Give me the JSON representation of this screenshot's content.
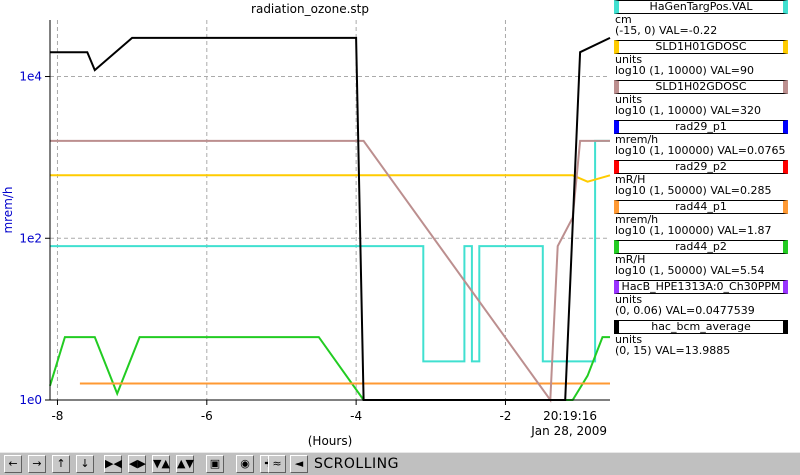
{
  "window": {
    "title": "radiation_ozone.stp"
  },
  "chart_data": {
    "type": "line",
    "title": "radiation_ozone.stp",
    "xlabel": "(Hours)",
    "ylabel": "mrem/h",
    "ylabel_color": "#0000cc",
    "yscale": "log10",
    "xlim": [
      -8.1,
      -0.6
    ],
    "ylim": [
      1,
      50000
    ],
    "x_ticks": [
      {
        "value": -8,
        "label": "-8"
      },
      {
        "value": -6,
        "label": "-6"
      },
      {
        "value": -4,
        "label": "-4"
      },
      {
        "value": -2,
        "label": "-2"
      }
    ],
    "y_ticks": [
      {
        "value": 1,
        "label": "1e0"
      },
      {
        "value": 100,
        "label": "1e2"
      },
      {
        "value": 10000,
        "label": "1e4"
      }
    ],
    "end_time": "20:19:16",
    "end_date": "Jan 28, 2009",
    "grid": true,
    "series": [
      {
        "name": "HaGenTargPos.VAL",
        "color": "#40e0d0",
        "points": [
          [
            -8.1,
            80
          ],
          [
            -4.3,
            80
          ],
          [
            -3.9,
            80
          ],
          [
            -3.1,
            80
          ],
          [
            -3.1,
            3
          ],
          [
            -2.55,
            3
          ],
          [
            -2.55,
            80
          ],
          [
            -2.45,
            80
          ],
          [
            -2.45,
            3
          ],
          [
            -2.35,
            3
          ],
          [
            -2.35,
            80
          ],
          [
            -1.5,
            80
          ],
          [
            -1.5,
            3
          ],
          [
            -0.8,
            3
          ],
          [
            -0.8,
            1600
          ],
          [
            -0.6,
            1600
          ]
        ]
      },
      {
        "name": "rad44_p2",
        "color": "#22cc22",
        "points": [
          [
            -8.1,
            1.5
          ],
          [
            -7.9,
            6
          ],
          [
            -7.5,
            6
          ],
          [
            -7.2,
            1.2
          ],
          [
            -6.9,
            6
          ],
          [
            -5.8,
            6
          ],
          [
            -4.5,
            6
          ],
          [
            -3.9,
            1
          ],
          [
            -1.1,
            1
          ],
          [
            -0.9,
            2
          ],
          [
            -0.7,
            6
          ],
          [
            -0.6,
            6
          ]
        ]
      },
      {
        "name": "rad44_p1",
        "color": "#ff9933",
        "points": [
          [
            -7.7,
            1.6
          ],
          [
            -6.4,
            1.6
          ],
          [
            -4.2,
            1.6
          ],
          [
            -1.1,
            1.6
          ],
          [
            -0.6,
            1.6
          ]
        ]
      },
      {
        "name": "SLD1H01GDOSC",
        "color": "#ffcc00",
        "points": [
          [
            -8.1,
            600
          ],
          [
            -6.5,
            600
          ],
          [
            -5.2,
            600
          ],
          [
            -3.9,
            600
          ],
          [
            -1.1,
            600
          ],
          [
            -0.9,
            500
          ],
          [
            -0.6,
            600
          ]
        ]
      },
      {
        "name": "SLD1H02GDOSC",
        "color": "#bc8f8f",
        "points": [
          [
            -8.1,
            1600
          ],
          [
            -6.2,
            1600
          ],
          [
            -4.8,
            1600
          ],
          [
            -3.9,
            1600
          ],
          [
            -1.4,
            1
          ],
          [
            -1.3,
            80
          ],
          [
            -1.1,
            180
          ],
          [
            -1.0,
            1600
          ],
          [
            -0.6,
            1600
          ]
        ]
      },
      {
        "name": "hac_bcm_average",
        "color": "#000000",
        "points": [
          [
            -8.1,
            20000
          ],
          [
            -7.6,
            20000
          ],
          [
            -7.5,
            12000
          ],
          [
            -7.0,
            30000
          ],
          [
            -5.0,
            30000
          ],
          [
            -4.0,
            30000
          ],
          [
            -3.9,
            1
          ],
          [
            -1.2,
            1
          ],
          [
            -1.0,
            20000
          ],
          [
            -0.6,
            30000
          ]
        ]
      }
    ]
  },
  "legend": [
    {
      "name": "HaGenTargPos.VAL",
      "color": "#40e0d0",
      "unit": "cm",
      "info": "(-15, 0) VAL=-0.22"
    },
    {
      "name": "SLD1H01GDOSC",
      "color": "#ffcc00",
      "unit": "units",
      "info": "log10 (1, 10000) VAL=90"
    },
    {
      "name": "SLD1H02GDOSC",
      "color": "#bc8f8f",
      "unit": "units",
      "info": "log10 (1, 10000) VAL=320"
    },
    {
      "name": "rad29_p1",
      "color": "#0000ff",
      "unit": "mrem/h",
      "info": "log10 (1, 100000) VAL=0.0765"
    },
    {
      "name": "rad29_p2",
      "color": "#ff0000",
      "unit": "mR/H",
      "info": "log10 (1, 50000) VAL=0.285"
    },
    {
      "name": "rad44_p1",
      "color": "#ff9933",
      "unit": "mrem/h",
      "info": "log10 (1, 100000) VAL=1.87"
    },
    {
      "name": "rad44_p2",
      "color": "#22cc22",
      "unit": "mR/H",
      "info": "log10 (1, 50000) VAL=5.54"
    },
    {
      "name": "HacB_HPE1313A:0_Ch30PPM",
      "color": "#9933ff",
      "unit": "units",
      "info": "(0, 0.06) VAL=0.0477539"
    },
    {
      "name": "hac_bcm_average",
      "color": "#000000",
      "unit": "units",
      "info": "(0, 15) VAL=13.9885"
    }
  ],
  "toolbar": {
    "buttons": [
      {
        "name": "scroll-left-button",
        "glyph": "←"
      },
      {
        "name": "scroll-right-button",
        "glyph": "→"
      },
      {
        "name": "scroll-up-button",
        "glyph": "↑"
      },
      {
        "name": "scroll-down-button",
        "glyph": "↓"
      },
      {
        "name": "zoom-in-x-button",
        "glyph": "▶◀"
      },
      {
        "name": "zoom-out-x-button",
        "glyph": "◀▶"
      },
      {
        "name": "zoom-in-y-button",
        "glyph": "▼▲"
      },
      {
        "name": "zoom-out-y-button",
        "glyph": "▲▼"
      },
      {
        "name": "autozoom-button",
        "glyph": "▣"
      },
      {
        "name": "stop-button",
        "glyph": "◉"
      },
      {
        "name": "add-trace-button",
        "glyph": "✚"
      },
      {
        "name": "config-button",
        "glyph": "≈"
      },
      {
        "name": "pause-button",
        "glyph": "◄"
      }
    ],
    "status": "SCROLLING"
  }
}
